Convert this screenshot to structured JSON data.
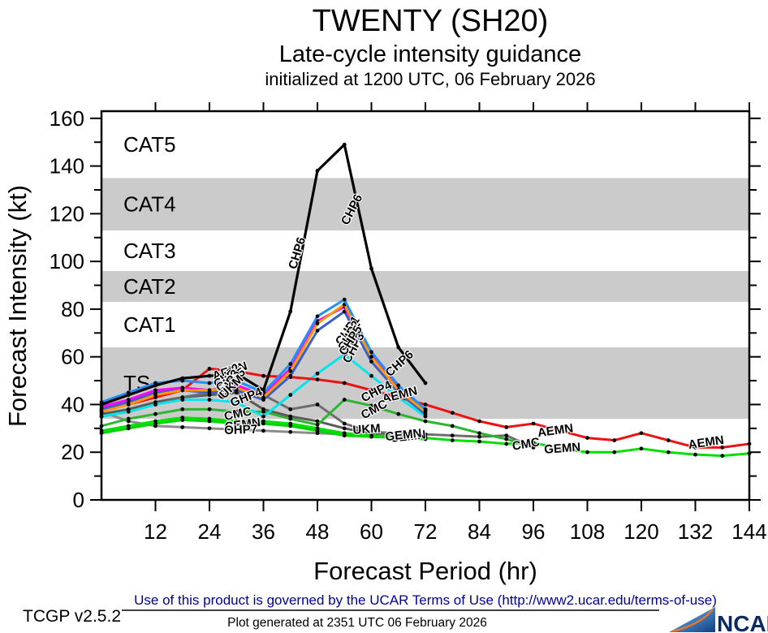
{
  "title": "TWENTY (SH20)",
  "subtitle": "Late-cycle intensity guidance",
  "init_line": "initialized at 1200 UTC, 06 February 2026",
  "footer": {
    "terms": "Use of this product is governed by the UCAR Terms of Use (http://www2.ucar.edu/terms-of-use)",
    "version": "TCGP v2.5.2",
    "generated": "Plot generated at 2351 UTC   06 February 2026",
    "logo_text": "NCAR"
  },
  "chart_data": {
    "type": "line",
    "xlabel": "Forecast Period (hr)",
    "ylabel": "Forecast Intensity (kt)",
    "xlim": [
      0,
      144
    ],
    "ylim": [
      0,
      163
    ],
    "xticks": [
      12,
      24,
      36,
      48,
      60,
      72,
      84,
      96,
      108,
      120,
      132,
      144
    ],
    "yticks": [
      0,
      20,
      40,
      60,
      80,
      100,
      120,
      140,
      160
    ],
    "ytick_minor": [
      10,
      30,
      50,
      70,
      90,
      110,
      130,
      150
    ],
    "grid": false,
    "legend_position": "labels-on-lines",
    "band_fill": "#cbcbcb",
    "band_label_gray": "#c6c6c6",
    "bands": [
      {
        "label": "TS",
        "range": [
          34,
          64
        ],
        "fill": "#cbcbcb",
        "label_color": "#ffffff"
      },
      {
        "label": "CAT1",
        "range": [
          64,
          83
        ],
        "fill": "#ffffff",
        "label_color": "#c6c6c6"
      },
      {
        "label": "CAT2",
        "range": [
          83,
          96
        ],
        "fill": "#cbcbcb",
        "label_color": "#ffffff"
      },
      {
        "label": "CAT3",
        "range": [
          96,
          113
        ],
        "fill": "#ffffff",
        "label_color": "#c6c6c6"
      },
      {
        "label": "CAT4",
        "range": [
          113,
          135
        ],
        "fill": "#cbcbcb",
        "label_color": "#ffffff"
      },
      {
        "label": "CAT5",
        "range": [
          135,
          163
        ],
        "fill": "#ffffff",
        "label_color": "#c6c6c6"
      }
    ],
    "series": [
      {
        "name": "OHP7",
        "color": "#8c8c8c",
        "x": [
          0,
          6,
          12,
          18,
          24,
          30,
          36,
          42,
          48,
          54,
          60
        ],
        "y": [
          37,
          33,
          31,
          30.5,
          30,
          29.5,
          29,
          28.5,
          28,
          27.5,
          27
        ]
      },
      {
        "name": "GHP4",
        "color": "#5a5a5a",
        "x": [
          0,
          6,
          12,
          18,
          24,
          30,
          36,
          42,
          48,
          54,
          60,
          66,
          72
        ],
        "y": [
          36,
          38,
          41,
          43,
          44,
          45,
          38,
          35,
          33,
          30,
          28,
          27.5,
          27
        ]
      },
      {
        "name": "UKM",
        "color": "#6e6e6e",
        "x": [
          0,
          6,
          12,
          18,
          24,
          30,
          36,
          42,
          48,
          54,
          60,
          66,
          72,
          78,
          84,
          90,
          96
        ],
        "y": [
          35,
          37,
          40,
          43,
          45,
          47,
          44,
          38,
          40,
          32,
          28.5,
          28,
          27.5,
          27,
          26.5,
          27,
          22
        ]
      },
      {
        "name": "CEMN",
        "color": "#00d400",
        "x": [
          0,
          6,
          12,
          18,
          24,
          30,
          36,
          42,
          48,
          54,
          60,
          66,
          72
        ],
        "y": [
          28,
          30,
          32,
          33.5,
          33,
          32,
          32,
          31,
          29,
          27,
          26.5,
          26,
          25.5
        ]
      },
      {
        "name": "GEMN",
        "color": "#00e000",
        "x": [
          0,
          6,
          12,
          18,
          24,
          30,
          36,
          42,
          48,
          54,
          60,
          66,
          72,
          78,
          84,
          90,
          96,
          102,
          108,
          114,
          120,
          126,
          132,
          138,
          144
        ],
        "y": [
          29,
          31,
          33,
          34.5,
          34,
          33,
          33,
          32,
          30,
          28,
          27,
          26.5,
          26,
          25,
          24.5,
          23.5,
          24,
          21.5,
          20,
          20,
          21.5,
          20,
          19,
          18.5,
          19.5
        ]
      },
      {
        "name": "CMC",
        "color": "#2db52d",
        "x": [
          0,
          6,
          12,
          18,
          24,
          30,
          36,
          42,
          48,
          54,
          60,
          66,
          72,
          78,
          84,
          90,
          96
        ],
        "y": [
          31,
          34,
          36,
          38,
          38,
          37,
          37,
          34,
          31.5,
          42,
          39.5,
          36,
          33,
          31,
          28,
          25.5,
          22
        ]
      },
      {
        "name": "CHP4",
        "color": "#00e5ee",
        "x": [
          0,
          6,
          12,
          18,
          24,
          30,
          36,
          42,
          48,
          54,
          60,
          66,
          72
        ],
        "y": [
          35,
          37,
          40,
          42,
          42,
          41,
          35,
          44,
          53,
          61,
          52,
          43,
          35
        ]
      },
      {
        "name": "AEMN",
        "color": "#ee1111",
        "x": [
          0,
          6,
          12,
          18,
          24,
          30,
          36,
          42,
          48,
          54,
          60,
          66,
          72,
          78,
          84,
          90,
          96,
          102,
          108,
          114,
          120,
          126,
          132,
          138,
          144
        ],
        "y": [
          38,
          40,
          43,
          46,
          55,
          54,
          52,
          51.5,
          50.5,
          49,
          46,
          43,
          40,
          36.5,
          33,
          30.5,
          32,
          29,
          26,
          25,
          28,
          25,
          22,
          22,
          23.5
        ]
      },
      {
        "name": "CHP1",
        "color": "#3a5fcd",
        "x": [
          0,
          6,
          12,
          18,
          24,
          30,
          36,
          42,
          48,
          54,
          60,
          66,
          72
        ],
        "y": [
          38,
          41,
          45,
          46,
          45,
          46,
          42,
          52,
          71,
          79,
          58,
          45,
          36
        ]
      },
      {
        "name": "CHP2",
        "color": "#ff00ff",
        "x": [
          0,
          6,
          12,
          18,
          24,
          30,
          36,
          42,
          48,
          54,
          60,
          66,
          72
        ],
        "y": [
          39,
          42,
          46,
          47,
          46,
          48,
          44,
          55,
          75,
          81,
          61,
          47,
          37.5
        ]
      },
      {
        "name": "CHP5",
        "color": "#ff9900",
        "x": [
          0,
          6,
          12,
          18,
          24,
          30,
          36,
          42,
          48,
          54,
          60,
          66,
          72
        ],
        "y": [
          37,
          40,
          44,
          46,
          46,
          47,
          43,
          54,
          74,
          82,
          60,
          46,
          37
        ]
      },
      {
        "name": "CHP3",
        "color": "#1e90ff",
        "x": [
          0,
          6,
          12,
          18,
          24,
          30,
          36,
          42,
          48,
          54,
          60,
          66,
          72
        ],
        "y": [
          41,
          45,
          49,
          50,
          49,
          50,
          45,
          57,
          77,
          84,
          62,
          48,
          38
        ]
      },
      {
        "name": "CHP6",
        "color": "#000000",
        "x": [
          0,
          6,
          12,
          18,
          24,
          30,
          36,
          42,
          48,
          54,
          60,
          66,
          72
        ],
        "y": [
          40,
          44,
          48,
          51,
          52,
          53,
          46,
          79,
          138,
          149,
          97,
          64,
          49
        ]
      }
    ],
    "line_labels": [
      {
        "text": "CHP6",
        "h": 44.3,
        "v": 103,
        "deg": -73
      },
      {
        "text": "CHP6",
        "h": 56.4,
        "v": 121,
        "deg": -63
      },
      {
        "text": "CHP6",
        "h": 66.8,
        "v": 56,
        "deg": -42
      },
      {
        "text": "CHP3",
        "h": 56.8,
        "v": 63,
        "deg": -62
      },
      {
        "text": "CHP1",
        "h": 55.4,
        "v": 70,
        "deg": -55
      },
      {
        "text": "CHP2",
        "h": 55.8,
        "v": 68,
        "deg": -60
      },
      {
        "text": "CHP5",
        "h": 56.1,
        "v": 66,
        "deg": -58
      },
      {
        "text": "CHP4",
        "h": 61.5,
        "v": 44,
        "deg": -27
      },
      {
        "text": "AEMN",
        "h": 66.5,
        "v": 42.5,
        "deg": -14
      },
      {
        "text": "AEMN",
        "h": 101,
        "v": 27.5,
        "deg": -8
      },
      {
        "text": "AEMN",
        "h": 134.5,
        "v": 22.5,
        "deg": -8
      },
      {
        "text": "CMC",
        "h": 30.5,
        "v": 34.5,
        "deg": -12
      },
      {
        "text": "CMC",
        "h": 61,
        "v": 36.5,
        "deg": -28
      },
      {
        "text": "CMC",
        "h": 94.5,
        "v": 21.8,
        "deg": -10
      },
      {
        "text": "CEMN",
        "h": 31.5,
        "v": 30,
        "deg": -8
      },
      {
        "text": "CEMN",
        "h": 68.2,
        "v": 25,
        "deg": -6
      },
      {
        "text": "GEMN",
        "h": 67.2,
        "v": 25.6,
        "deg": -6
      },
      {
        "text": "GEMN",
        "h": 102.5,
        "v": 20,
        "deg": -4
      },
      {
        "text": "UKM",
        "h": 59,
        "v": 28,
        "deg": -4
      },
      {
        "text": "GHP4",
        "h": 32.5,
        "v": 41.5,
        "deg": -22
      },
      {
        "text": "OHP7",
        "h": 31,
        "v": 27.8,
        "deg": -2
      },
      {
        "text": "AEMN",
        "h": 28.8,
        "v": 52.5,
        "deg": -18
      },
      {
        "text": "CHP1",
        "h": 28.6,
        "v": 51,
        "deg": -40
      },
      {
        "text": "CHP2",
        "h": 29,
        "v": 50,
        "deg": -55
      },
      {
        "text": "CHP5",
        "h": 29.2,
        "v": 49,
        "deg": -35
      },
      {
        "text": "CHP3",
        "h": 29,
        "v": 47.5,
        "deg": -60
      },
      {
        "text": "UKM",
        "h": 29.5,
        "v": 46.3,
        "deg": -45
      }
    ]
  }
}
